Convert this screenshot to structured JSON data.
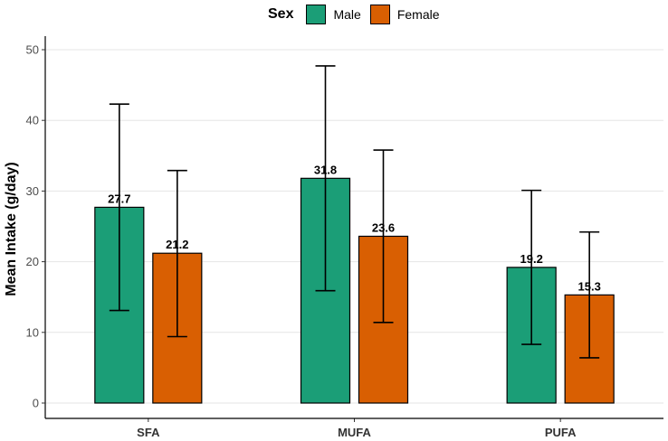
{
  "legend": {
    "title": "Sex",
    "items": [
      {
        "label": "Male",
        "color": "#1b9e77"
      },
      {
        "label": "Female",
        "color": "#d95f02"
      }
    ]
  },
  "chart_data": {
    "type": "bar",
    "categories": [
      "SFA",
      "MUFA",
      "PUFA"
    ],
    "series": [
      {
        "name": "Male",
        "color": "#1b9e77",
        "values": [
          27.7,
          31.8,
          19.2
        ],
        "error_low": [
          13.1,
          15.9,
          8.3
        ],
        "error_high": [
          42.3,
          47.7,
          30.1
        ]
      },
      {
        "name": "Female",
        "color": "#d95f02",
        "values": [
          21.2,
          23.6,
          15.3
        ],
        "error_low": [
          9.4,
          11.4,
          6.4
        ],
        "error_high": [
          32.9,
          35.8,
          24.2
        ]
      }
    ],
    "data_labels": [
      [
        "27.7",
        "31.8",
        "19.2"
      ],
      [
        "21.2",
        "23.6",
        "15.3"
      ]
    ],
    "ylabel": "Mean Intake (g/day)",
    "xlabel": "",
    "ylim": [
      0,
      50
    ],
    "yticks": [
      "0",
      "10",
      "20",
      "30",
      "40",
      "50"
    ],
    "grid": true,
    "legend_position": "top"
  }
}
